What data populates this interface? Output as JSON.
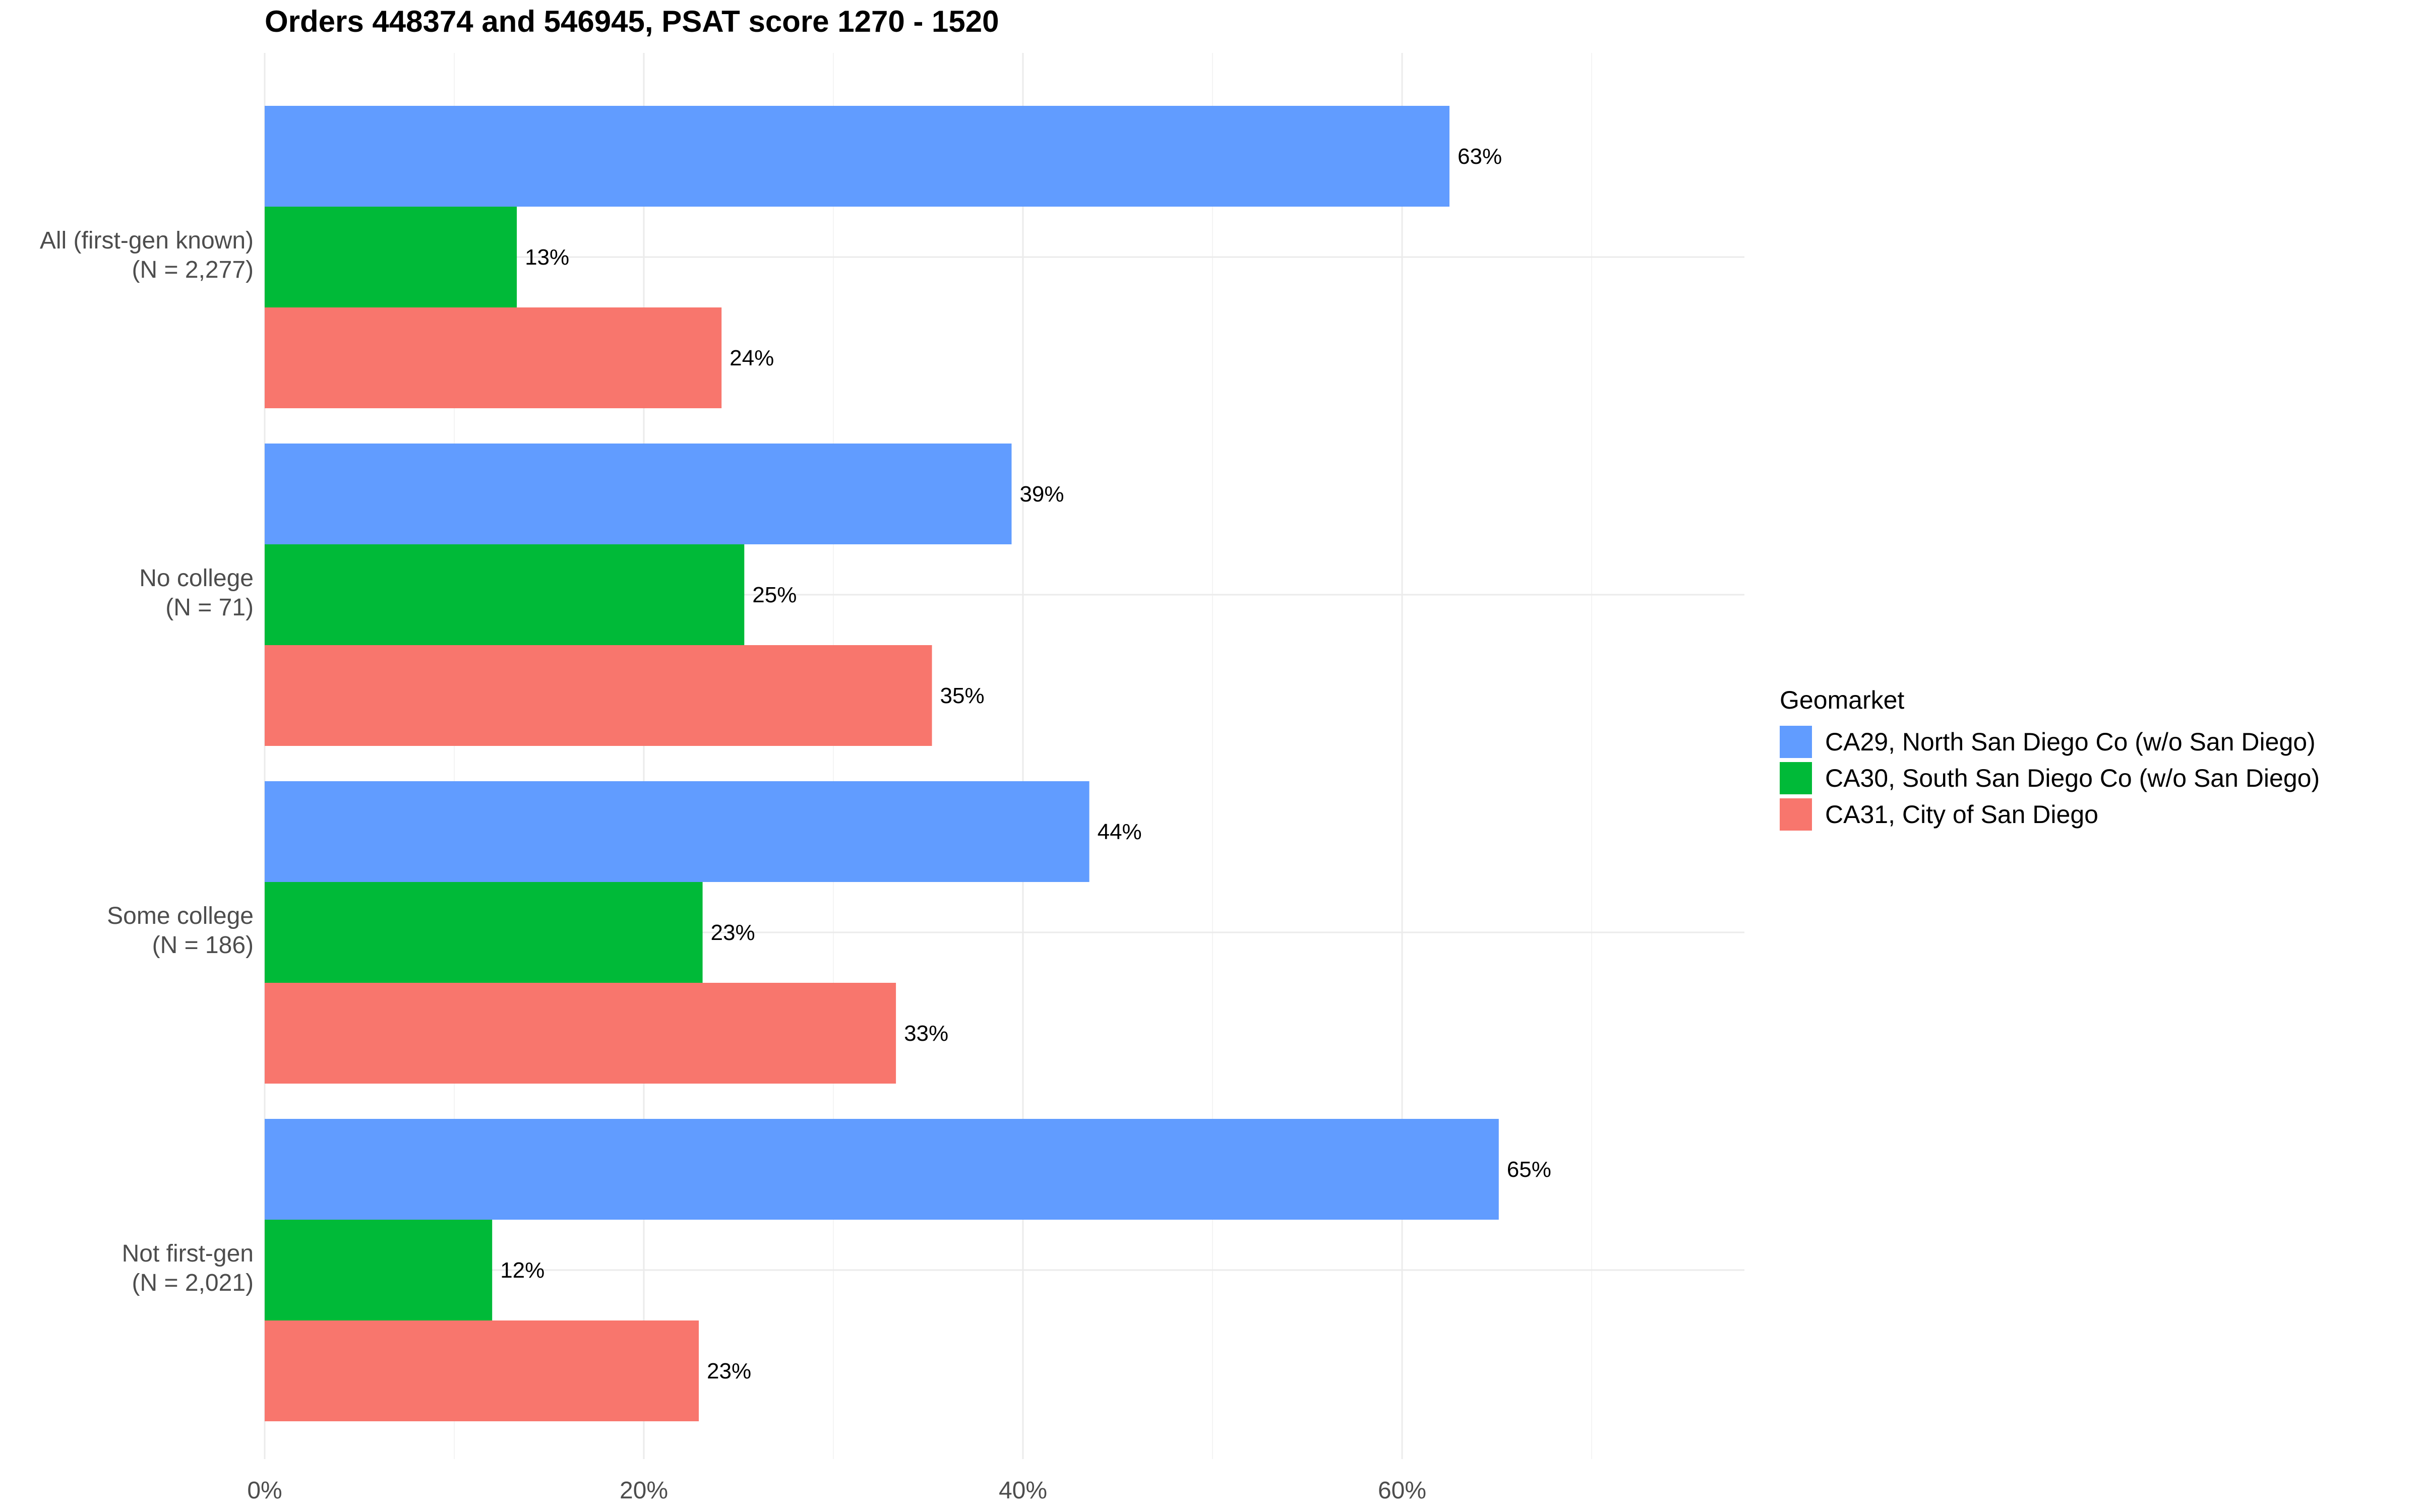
{
  "chart_data": {
    "type": "bar",
    "orientation": "horizontal",
    "title": "Orders 448374 and 546945, PSAT score 1270 - 1520",
    "xlabel": "",
    "ylabel": "",
    "xlim": [
      0,
      78
    ],
    "grid": true,
    "legend_position": "right",
    "categories": [
      {
        "line1": "All (first-gen known)",
        "line2": "(N = 2,277)"
      },
      {
        "line1": "No college",
        "line2": "(N = 71)"
      },
      {
        "line1": "Some college",
        "line2": "(N = 186)"
      },
      {
        "line1": "Not first-gen",
        "line2": "(N = 2,021)"
      }
    ],
    "series": [
      {
        "name": "CA29, North San Diego Co (w/o San Diego)",
        "color": "#619CFF",
        "values": [
          62.5,
          39.4,
          43.5,
          65.1
        ],
        "labels": [
          "63%",
          "39%",
          "44%",
          "65%"
        ]
      },
      {
        "name": "CA30, South San Diego Co (w/o San Diego)",
        "color": "#00BA38",
        "values": [
          13.3,
          25.3,
          23.1,
          12.0
        ],
        "labels": [
          "13%",
          "25%",
          "23%",
          "12%"
        ]
      },
      {
        "name": "CA31, City of San Diego",
        "color": "#F8766D",
        "values": [
          24.1,
          35.2,
          33.3,
          22.9
        ],
        "labels": [
          "24%",
          "35%",
          "33%",
          "23%"
        ]
      }
    ],
    "x_ticks": [
      {
        "value": 0,
        "label": "0%"
      },
      {
        "value": 20,
        "label": "20%"
      },
      {
        "value": 40,
        "label": "40%"
      },
      {
        "value": 60,
        "label": "60%"
      }
    ],
    "legend_title": "Geomarket"
  }
}
